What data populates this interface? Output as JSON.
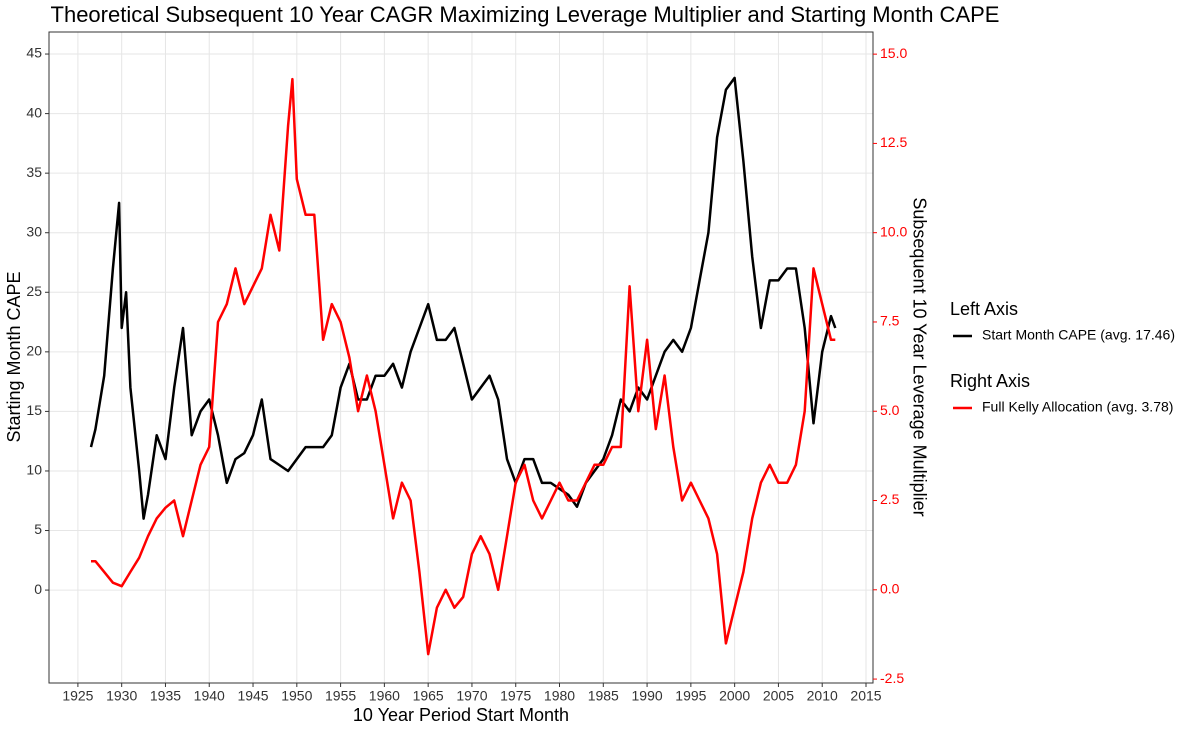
{
  "chart_data": {
    "type": "line",
    "title": "Theoretical Subsequent 10 Year CAGR Maximizing Leverage Multiplier and Starting Month CAPE",
    "xlabel": "10 Year Period Start Month",
    "ylabel": "Starting Month CAPE",
    "y2label": "Subsequent 10 Year Leverage Multiplier",
    "xlim": [
      1921.7,
      2015.8
    ],
    "xticks": [
      1925,
      1930,
      1935,
      1940,
      1945,
      1950,
      1955,
      1960,
      1965,
      1970,
      1975,
      1980,
      1985,
      1990,
      1995,
      2000,
      2005,
      2010,
      2015
    ],
    "ylim": [
      -7.8,
      46.85
    ],
    "yticks": [
      0,
      5,
      10,
      15,
      20,
      25,
      30,
      35,
      40,
      45
    ],
    "y2lim": [
      -2.61,
      15.62
    ],
    "y2ticks": [
      {
        "value": -2.5,
        "label": "-2.5"
      },
      {
        "value": 0,
        "label": "0.0"
      },
      {
        "value": 2.5,
        "label": "2.5"
      },
      {
        "value": 5,
        "label": "5.0"
      },
      {
        "value": 7.5,
        "label": "7.5"
      },
      {
        "value": 10,
        "label": "10.0"
      },
      {
        "value": 12.5,
        "label": "12.5"
      },
      {
        "value": 15,
        "label": "15.0"
      }
    ],
    "y2tick_color": "#ff0000",
    "grid": true,
    "series": [
      {
        "legend_title": "Left Axis",
        "name": "Start Month CAPE (avg. 17.46)",
        "color": "#000000",
        "axis": "y",
        "x": [
          1926.5,
          1927,
          1928,
          1929,
          1929.7,
          1930,
          1930.5,
          1931,
          1932,
          1932.5,
          1933,
          1934,
          1935,
          1936,
          1937,
          1938,
          1939,
          1940,
          1941,
          1942,
          1943,
          1944,
          1945,
          1946,
          1947,
          1948,
          1949,
          1950,
          1951,
          1952,
          1953,
          1954,
          1955,
          1956,
          1957,
          1958,
          1959,
          1960,
          1961,
          1962,
          1963,
          1964,
          1965,
          1966,
          1967,
          1968,
          1969,
          1970,
          1971,
          1972,
          1973,
          1974,
          1975,
          1976,
          1977,
          1978,
          1979,
          1980,
          1981,
          1982,
          1983,
          1984,
          1985,
          1986,
          1987,
          1988,
          1989,
          1990,
          1991,
          1992,
          1993,
          1994,
          1995,
          1996,
          1997,
          1998,
          1999,
          2000,
          2001,
          2002,
          2003,
          2004,
          2005,
          2006,
          2007,
          2008,
          2009,
          2010,
          2011,
          2011.5
        ],
        "values": [
          12,
          13.5,
          18,
          27,
          32.5,
          22,
          25,
          17,
          10,
          6,
          8,
          13,
          11,
          17,
          22,
          13,
          15,
          16,
          13,
          9,
          11,
          11.5,
          13,
          16,
          11,
          10.5,
          10,
          11,
          12,
          12,
          12,
          13,
          17,
          19,
          16,
          16,
          18,
          18,
          19,
          17,
          20,
          22,
          24,
          21,
          21,
          22,
          19,
          16,
          17,
          18,
          16,
          11,
          9,
          11,
          11,
          9,
          9,
          8.5,
          8,
          7,
          9,
          10,
          11,
          13,
          16,
          15,
          17,
          16,
          18,
          20,
          21,
          20,
          22,
          26,
          30,
          38,
          42,
          43,
          36,
          28,
          22,
          26,
          26,
          27,
          27,
          22,
          14,
          20,
          23,
          22
        ]
      },
      {
        "legend_title": "Right Axis",
        "name": "Full Kelly Allocation (avg. 3.78)",
        "color": "#ff0000",
        "axis": "y2",
        "x": [
          1926.5,
          1927,
          1928,
          1929,
          1930,
          1931,
          1932,
          1933,
          1934,
          1935,
          1936,
          1937,
          1938,
          1939,
          1940,
          1941,
          1942,
          1943,
          1944,
          1945,
          1946,
          1947,
          1948,
          1949,
          1949.5,
          1950,
          1951,
          1952,
          1953,
          1954,
          1955,
          1956,
          1957,
          1958,
          1959,
          1960,
          1961,
          1962,
          1963,
          1964,
          1965,
          1966,
          1967,
          1968,
          1969,
          1970,
          1971,
          1972,
          1973,
          1974,
          1975,
          1976,
          1977,
          1978,
          1979,
          1980,
          1981,
          1982,
          1983,
          1984,
          1985,
          1986,
          1987,
          1988,
          1989,
          1990,
          1991,
          1992,
          1993,
          1994,
          1995,
          1996,
          1997,
          1998,
          1999,
          2000,
          2001,
          2002,
          2003,
          2004,
          2005,
          2006,
          2007,
          2008,
          2009,
          2010,
          2011,
          2011.5
        ],
        "values": [
          0.8,
          0.8,
          0.5,
          0.2,
          0.1,
          0.5,
          0.9,
          1.5,
          2,
          2.3,
          2.5,
          1.5,
          2.5,
          3.5,
          4,
          7.5,
          8,
          9,
          8,
          8.5,
          9,
          10.5,
          9.5,
          13,
          14.3,
          11.5,
          10.5,
          10.5,
          7,
          8,
          7.5,
          6.5,
          5,
          6,
          5,
          3.5,
          2,
          3,
          2.5,
          0.5,
          -1.8,
          -0.5,
          0,
          -0.5,
          -0.2,
          1,
          1.5,
          1,
          0,
          1.5,
          3,
          3.5,
          2.5,
          2,
          2.5,
          3,
          2.5,
          2.5,
          3,
          3.5,
          3.5,
          4,
          4,
          8.5,
          5,
          7,
          4.5,
          6,
          4,
          2.5,
          3,
          2.5,
          2,
          1,
          -1.5,
          -0.5,
          0.5,
          2,
          3,
          3.5,
          3,
          3,
          3.5,
          5,
          9,
          8,
          7,
          7
        ]
      }
    ]
  }
}
